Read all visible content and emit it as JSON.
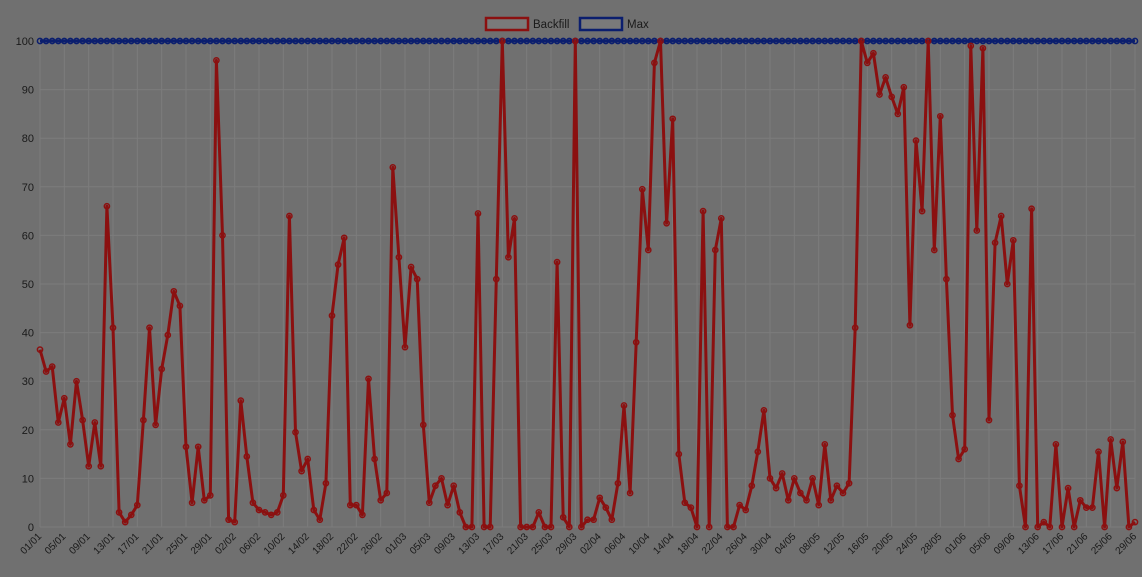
{
  "chart_data": {
    "type": "line",
    "ylim": [
      0,
      100
    ],
    "y_ticks": [
      0,
      10,
      20,
      30,
      40,
      50,
      60,
      70,
      80,
      90,
      100
    ],
    "x_tick_labels": [
      "01/01",
      "05/01",
      "09/01",
      "13/01",
      "17/01",
      "21/01",
      "25/01",
      "29/01",
      "02/02",
      "06/02",
      "10/02",
      "14/02",
      "18/02",
      "22/02",
      "26/02",
      "01/03",
      "05/03",
      "09/03",
      "13/03",
      "17/03",
      "21/03",
      "25/03",
      "29/03",
      "02/04",
      "06/04",
      "10/04",
      "14/04",
      "18/04",
      "22/04",
      "26/04",
      "30/04",
      "04/05",
      "08/05",
      "12/05",
      "16/05",
      "20/05",
      "24/05",
      "28/05",
      "01/06",
      "05/06",
      "09/06",
      "13/06",
      "17/06",
      "21/06",
      "25/06",
      "29/06"
    ],
    "grid": true,
    "legend_position": "top-center",
    "series": [
      {
        "name": "Backfill",
        "color": "#8b1010",
        "values": [
          36.5,
          32,
          33,
          21.5,
          26.5,
          17,
          30,
          22,
          12.5,
          21.5,
          12.5,
          66,
          41,
          3,
          1,
          2.5,
          4.5,
          22,
          41,
          21,
          32.5,
          39.5,
          48.5,
          45.5,
          16.5,
          5,
          16.5,
          5.5,
          6.5,
          96,
          60,
          1.5,
          1,
          26,
          14.5,
          5,
          3.5,
          3,
          2.5,
          3,
          6.5,
          64,
          19.5,
          11.5,
          14,
          3.5,
          1.5,
          9,
          43.5,
          54,
          59.5,
          4.5,
          4.5,
          2.5,
          30.5,
          14,
          5.5,
          7,
          74,
          55.5,
          37,
          53.5,
          51,
          21,
          5,
          8.5,
          10,
          4.5,
          8.5,
          3,
          0,
          0,
          64.5,
          0,
          0,
          51,
          100,
          55.5,
          63.5,
          0,
          0,
          0,
          3,
          0,
          0,
          54.5,
          2,
          0,
          100,
          0,
          1.5,
          1.5,
          6,
          4,
          1.5,
          9,
          25,
          7,
          38,
          69.5,
          57,
          95.5,
          100,
          62.5,
          84,
          15,
          5,
          4,
          0,
          65,
          0,
          57,
          63.5,
          0,
          0,
          4.5,
          3.5,
          8.5,
          15.5,
          24,
          10,
          8,
          11,
          5.5,
          10,
          7,
          5.5,
          10,
          4.5,
          17,
          5.5,
          8.5,
          7,
          9,
          41,
          100,
          95.5,
          97.5,
          89,
          92.5,
          88.5,
          85,
          90.5,
          41.5,
          79.5,
          65,
          100,
          57,
          84.5,
          51,
          23,
          14,
          16,
          99,
          61,
          98.5,
          22,
          58.5,
          64,
          50,
          59,
          8.5,
          0,
          65.5,
          0,
          1,
          0,
          17,
          0,
          8,
          0,
          5.5,
          4,
          4,
          15.5,
          0,
          18,
          8,
          17.5,
          0,
          1
        ]
      },
      {
        "name": "Max",
        "color": "#0b1e6e",
        "values": [
          100,
          100,
          100,
          100,
          100,
          100,
          100,
          100,
          100,
          100,
          100,
          100,
          100,
          100,
          100,
          100,
          100,
          100,
          100,
          100,
          100,
          100,
          100,
          100,
          100,
          100,
          100,
          100,
          100,
          100,
          100,
          100,
          100,
          100,
          100,
          100,
          100,
          100,
          100,
          100,
          100,
          100,
          100,
          100,
          100,
          100,
          100,
          100,
          100,
          100,
          100,
          100,
          100,
          100,
          100,
          100,
          100,
          100,
          100,
          100,
          100,
          100,
          100,
          100,
          100,
          100,
          100,
          100,
          100,
          100,
          100,
          100,
          100,
          100,
          100,
          100,
          100,
          100,
          100,
          100,
          100,
          100,
          100,
          100,
          100,
          100,
          100,
          100,
          100,
          100,
          100,
          100,
          100,
          100,
          100,
          100,
          100,
          100,
          100,
          100,
          100,
          100,
          100,
          100,
          100,
          100,
          100,
          100,
          100,
          100,
          100,
          100,
          100,
          100,
          100,
          100,
          100,
          100,
          100,
          100,
          100,
          100,
          100,
          100,
          100,
          100,
          100,
          100,
          100,
          100,
          100,
          100,
          100,
          100,
          100,
          100,
          100,
          100,
          100,
          100,
          100,
          100,
          100,
          100,
          100,
          100,
          100,
          100,
          100,
          100,
          100,
          100,
          100,
          100,
          100,
          100,
          100,
          100,
          100,
          100,
          100,
          100,
          100,
          100,
          100,
          100,
          100,
          100,
          100,
          100,
          100,
          100,
          100,
          100,
          100,
          100,
          100,
          100,
          100,
          100,
          100
        ]
      }
    ]
  },
  "colors": {
    "background": "#707070",
    "grid": "#7c7c7c",
    "axis_text": "#1a1a1a"
  }
}
